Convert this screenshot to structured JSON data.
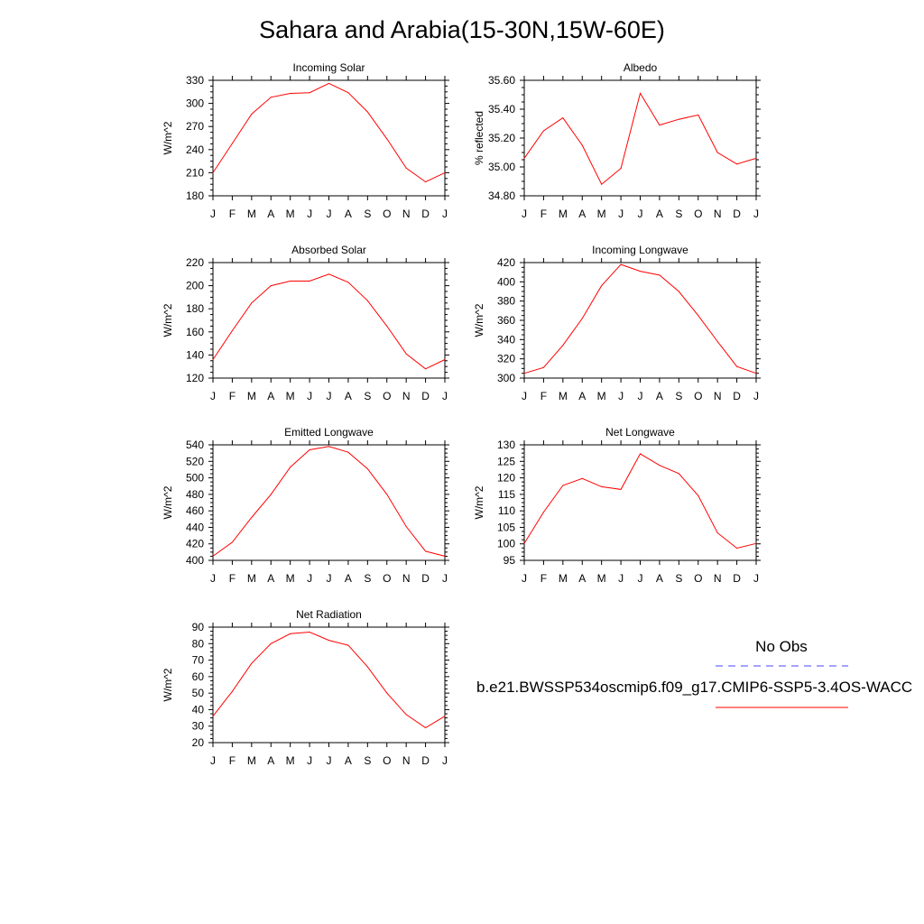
{
  "title": "Sahara and Arabia(15-30N,15W-60E)",
  "month_labels": [
    "J",
    "F",
    "M",
    "A",
    "M",
    "J",
    "J",
    "A",
    "S",
    "O",
    "N",
    "D",
    "J"
  ],
  "colors": {
    "model_line": "#ff0000",
    "obs_line": "#4a4aff",
    "axis": "#000000"
  },
  "legend": {
    "obs_label": "No Obs",
    "model_label": "b.e21.BWSSP534oscmip6.f09_g17.CMIP6-SSP5-3.4OS-WACC"
  },
  "chart_data": [
    {
      "type": "line",
      "title": "Incoming Solar",
      "ylabel": "W/m^2",
      "ylim": [
        180,
        330
      ],
      "yticks": [
        "180",
        "210",
        "240",
        "270",
        "300",
        "330"
      ],
      "x": [
        "J",
        "F",
        "M",
        "A",
        "M",
        "J",
        "J",
        "A",
        "S",
        "O",
        "N",
        "D",
        "J"
      ],
      "values": [
        210,
        248,
        286,
        308,
        313,
        314,
        326,
        314,
        289,
        254,
        216,
        198,
        210
      ]
    },
    {
      "type": "line",
      "title": "Albedo",
      "ylabel": "% reflected",
      "ylim": [
        34.8,
        35.6
      ],
      "yticks": [
        "34.80",
        "35.00",
        "35.20",
        "35.40",
        "35.60"
      ],
      "x": [
        "J",
        "F",
        "M",
        "A",
        "M",
        "J",
        "J",
        "A",
        "S",
        "O",
        "N",
        "D",
        "J"
      ],
      "values": [
        35.06,
        35.25,
        35.34,
        35.15,
        34.88,
        34.99,
        35.51,
        35.29,
        35.33,
        35.36,
        35.1,
        35.02,
        35.06
      ]
    },
    {
      "type": "line",
      "title": "Absorbed Solar",
      "ylabel": "W/m^2",
      "ylim": [
        120,
        220
      ],
      "yticks": [
        "120",
        "140",
        "160",
        "180",
        "200",
        "220"
      ],
      "x": [
        "J",
        "F",
        "M",
        "A",
        "M",
        "J",
        "J",
        "A",
        "S",
        "O",
        "N",
        "D",
        "J"
      ],
      "values": [
        136,
        161,
        185,
        200,
        204,
        204,
        210,
        203,
        187,
        165,
        141,
        128,
        136
      ]
    },
    {
      "type": "line",
      "title": "Incoming Longwave",
      "ylabel": "W/m^2",
      "ylim": [
        300,
        420
      ],
      "yticks": [
        "300",
        "320",
        "340",
        "360",
        "380",
        "400",
        "420"
      ],
      "x": [
        "J",
        "F",
        "M",
        "A",
        "M",
        "J",
        "J",
        "A",
        "S",
        "O",
        "N",
        "D",
        "J"
      ],
      "values": [
        305,
        311,
        334,
        362,
        396,
        418,
        411,
        407,
        390,
        365,
        338,
        312,
        305
      ]
    },
    {
      "type": "line",
      "title": "Emitted Longwave",
      "ylabel": "W/m^2",
      "ylim": [
        400,
        540
      ],
      "yticks": [
        "400",
        "420",
        "440",
        "460",
        "480",
        "500",
        "520",
        "540"
      ],
      "x": [
        "J",
        "F",
        "M",
        "A",
        "M",
        "J",
        "J",
        "A",
        "S",
        "O",
        "N",
        "D",
        "J"
      ],
      "values": [
        405,
        422,
        452,
        480,
        513,
        534,
        538,
        531,
        511,
        480,
        441,
        411,
        405
      ]
    },
    {
      "type": "line",
      "title": "Net Longwave",
      "ylabel": "W/m^2",
      "ylim": [
        95,
        130
      ],
      "yticks": [
        "95",
        "100",
        "105",
        "110",
        "115",
        "120",
        "125",
        "130"
      ],
      "x": [
        "J",
        "F",
        "M",
        "A",
        "M",
        "J",
        "J",
        "A",
        "S",
        "O",
        "N",
        "D",
        "J"
      ],
      "values": [
        100.1,
        109.6,
        117.7,
        119.8,
        117.3,
        116.5,
        127.3,
        123.8,
        121.3,
        114.6,
        103.3,
        98.7,
        100.1
      ]
    },
    {
      "type": "line",
      "title": "Net Radiation",
      "ylabel": "W/m^2",
      "ylim": [
        20,
        90
      ],
      "yticks": [
        "20",
        "30",
        "40",
        "50",
        "60",
        "70",
        "80",
        "90"
      ],
      "x": [
        "J",
        "F",
        "M",
        "A",
        "M",
        "J",
        "J",
        "A",
        "S",
        "O",
        "N",
        "D",
        "J"
      ],
      "values": [
        36,
        51,
        68,
        80,
        86,
        87,
        82,
        79,
        66,
        50,
        37,
        29,
        36
      ]
    }
  ]
}
